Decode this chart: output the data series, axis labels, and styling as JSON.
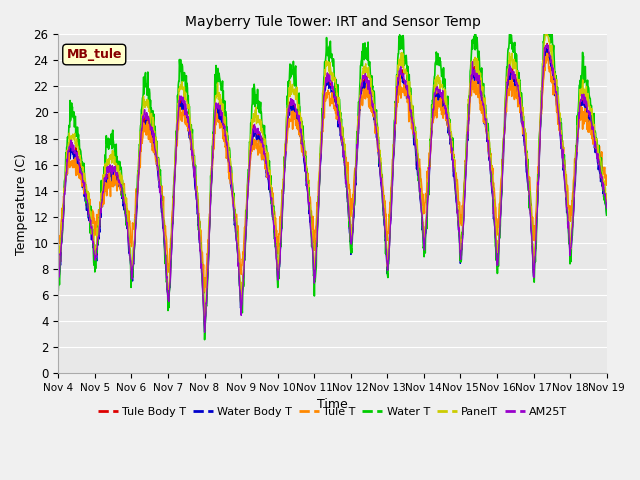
{
  "title": "Mayberry Tule Tower: IRT and Sensor Temp",
  "xlabel": "Time",
  "ylabel": "Temperature (C)",
  "ylim": [
    0,
    26
  ],
  "x_tick_labels": [
    "Nov 4",
    "Nov 5",
    "Nov 6",
    "Nov 7",
    "Nov 8",
    "Nov 9",
    "Nov 10",
    "Nov 11",
    "Nov 12",
    "Nov 13",
    "Nov 14",
    "Nov 15",
    "Nov 16",
    "Nov 17",
    "Nov 18",
    "Nov 19"
  ],
  "fig_facecolor": "#f0f0f0",
  "plot_bg_color": "#e8e8e8",
  "grid_color": "#ffffff",
  "legend_box_label": "MB_tule",
  "legend_box_facecolor": "#ffffcc",
  "legend_box_edgecolor": "#000000",
  "legend_box_textcolor": "#880000",
  "series": [
    {
      "label": "Tule Body T",
      "color": "#dd0000",
      "lw": 1.0
    },
    {
      "label": "Water Body T",
      "color": "#0000cc",
      "lw": 1.0
    },
    {
      "label": "Tule T",
      "color": "#ff8800",
      "lw": 1.2
    },
    {
      "label": "Water T",
      "color": "#00cc00",
      "lw": 1.2
    },
    {
      "label": "PanelT",
      "color": "#cccc00",
      "lw": 1.0
    },
    {
      "label": "AM25T",
      "color": "#9900cc",
      "lw": 1.0
    }
  ],
  "peak_days": [
    4.3,
    5.3,
    6.3,
    7.3,
    8.3,
    9.3,
    10.3,
    11.3,
    12.35,
    13.35,
    14.35,
    15.35,
    16.35,
    17.35,
    18.35
  ],
  "peak_vals": [
    17.5,
    15.0,
    19.5,
    21.0,
    20.5,
    18.5,
    20.5,
    22.5,
    22.5,
    23.0,
    21.5,
    23.0,
    23.0,
    25.0,
    21.0
  ],
  "trough_days": [
    4.0,
    4.8,
    5.8,
    6.8,
    7.8,
    8.8,
    9.8,
    10.8,
    11.8,
    12.8,
    13.8,
    14.8,
    15.8,
    16.8,
    17.8,
    18.8
  ],
  "trough_vals": [
    7.5,
    9.0,
    8.0,
    6.0,
    3.5,
    4.5,
    7.5,
    6.5,
    10.5,
    7.5,
    10.0,
    9.0,
    8.5,
    7.5,
    8.5,
    12.0
  ]
}
